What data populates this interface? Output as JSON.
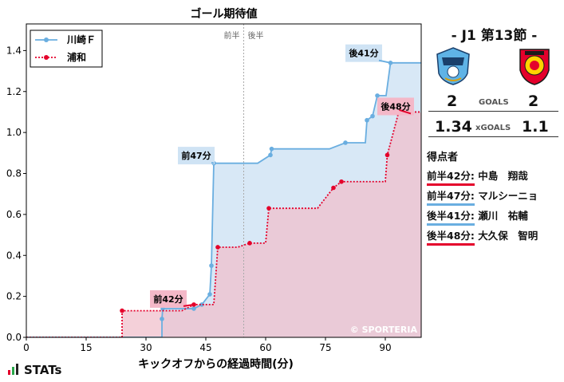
{
  "chart_data": {
    "type": "line",
    "step": true,
    "title": "ゴール期待値",
    "xlabel": "キックオフからの経過時間(分)",
    "ylabel": "",
    "xlim": [
      0,
      99
    ],
    "ylim": [
      0,
      1.53
    ],
    "xticks": [
      0,
      15,
      30,
      45,
      60,
      75,
      90
    ],
    "yticks": [
      0.0,
      0.2,
      0.4,
      0.6,
      0.8,
      1.0,
      1.2,
      1.4
    ],
    "half_time_x": 54.5,
    "half_labels": {
      "first": "前半",
      "second": "後半"
    },
    "grid": false,
    "legend_position": "top-left",
    "watermark": "© SPORTERIA",
    "series": [
      {
        "name": "川崎Ｆ",
        "color": "#6aaee0",
        "fill": "#d8e8f6",
        "style": "solid",
        "points": [
          [
            0,
            0
          ],
          [
            34,
            0.0
          ],
          [
            34,
            0.09
          ],
          [
            34.2,
            0.14
          ],
          [
            42,
            0.14
          ],
          [
            44,
            0.16
          ],
          [
            46,
            0.21
          ],
          [
            46.4,
            0.35
          ],
          [
            47,
            0.85
          ],
          [
            58,
            0.85
          ],
          [
            61.2,
            0.89
          ],
          [
            61.5,
            0.92
          ],
          [
            76,
            0.92
          ],
          [
            80,
            0.95
          ],
          [
            85,
            0.95
          ],
          [
            85.4,
            1.06
          ],
          [
            86.8,
            1.08
          ],
          [
            88,
            1.18
          ],
          [
            90.2,
            1.18
          ],
          [
            91.3,
            1.34
          ],
          [
            99,
            1.34
          ]
        ],
        "markers": [
          [
            34,
            0.09
          ],
          [
            34.2,
            0.14
          ],
          [
            42,
            0.14
          ],
          [
            44,
            0.16
          ],
          [
            46,
            0.21
          ],
          [
            46.4,
            0.35
          ],
          [
            47,
            0.85
          ],
          [
            61.2,
            0.89
          ],
          [
            61.5,
            0.92
          ],
          [
            80,
            0.95
          ],
          [
            85.4,
            1.06
          ],
          [
            86.8,
            1.08
          ],
          [
            88,
            1.18
          ],
          [
            91.3,
            1.34
          ]
        ]
      },
      {
        "name": "浦和",
        "color": "#e4002b",
        "fill": "#f0c0cc",
        "style": "dotted",
        "points": [
          [
            0,
            0
          ],
          [
            24,
            0.0
          ],
          [
            24,
            0.13
          ],
          [
            39,
            0.13
          ],
          [
            42,
            0.16
          ],
          [
            47,
            0.16
          ],
          [
            48,
            0.44
          ],
          [
            53,
            0.44
          ],
          [
            56,
            0.46
          ],
          [
            60,
            0.46
          ],
          [
            60.8,
            0.63
          ],
          [
            73,
            0.63
          ],
          [
            77,
            0.73
          ],
          [
            79,
            0.76
          ],
          [
            90,
            0.76
          ],
          [
            90.5,
            0.89
          ],
          [
            93.5,
            1.11
          ],
          [
            95.5,
            1.1
          ],
          [
            99,
            1.1
          ]
        ],
        "markers": [
          [
            24,
            0.13
          ],
          [
            42,
            0.16
          ],
          [
            48,
            0.44
          ],
          [
            56,
            0.46
          ],
          [
            60.8,
            0.63
          ],
          [
            77,
            0.73
          ],
          [
            79,
            0.76
          ],
          [
            90.5,
            0.89
          ],
          [
            93.5,
            1.11
          ],
          [
            95.5,
            1.1
          ]
        ]
      }
    ],
    "annotations": [
      {
        "text": "後41分",
        "team": "川崎Ｆ",
        "at": [
          91.3,
          1.34
        ],
        "box": [
          80,
          1.43
        ]
      },
      {
        "text": "後48分",
        "team": "浦和",
        "at": [
          93.5,
          1.11
        ],
        "box": [
          88,
          1.17
        ]
      },
      {
        "text": "前47分",
        "team": "川崎Ｆ",
        "at": [
          47,
          0.85
        ],
        "box": [
          38,
          0.93
        ]
      },
      {
        "text": "前42分",
        "team": "浦和",
        "at": [
          42,
          0.16
        ],
        "box": [
          31,
          0.23
        ]
      }
    ]
  },
  "match": {
    "title": "-  J1 第13節  -",
    "home_goals": "2",
    "away_goals": "2",
    "goals_label": "GOALS",
    "home_xg": "1.34",
    "away_xg": "1.1",
    "xg_label": "xGOALS"
  },
  "scorers": {
    "heading": "得点者",
    "items": [
      {
        "time": "前半42分:",
        "name": "中島　翔哉",
        "team": "浦和",
        "color": "#e4002b"
      },
      {
        "time": "前半47分:",
        "name": "マルシーニョ",
        "team": "川崎Ｆ",
        "color": "#6aaee0"
      },
      {
        "time": "後半41分:",
        "name": "瀬川　祐輔",
        "team": "川崎Ｆ",
        "color": "#6aaee0"
      },
      {
        "time": "後半48分:",
        "name": "大久保　智明",
        "team": "浦和",
        "color": "#e4002b"
      }
    ]
  },
  "brand": {
    "stats_logo": "STATs"
  }
}
